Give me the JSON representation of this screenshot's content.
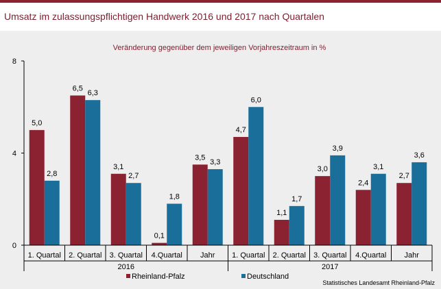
{
  "title": "Umsatz im zulassungspflichtigen Handwerk 2016 und 2017 nach Quartalen",
  "source": "Statistisches Landesamt Rheinland-Pfalz",
  "colors": {
    "accent": "#8b2232",
    "series_rp": "#8b2232",
    "series_de": "#1a6e9a",
    "background": "#eeeeee"
  },
  "chart_data": {
    "type": "bar",
    "title": "Veränderung gegenüber dem jeweiligen Vorjahreszeitraum in %",
    "ylim": [
      0,
      8
    ],
    "yticks": [
      "0",
      "4",
      "8"
    ],
    "categories": [
      "1. Quartal",
      "2. Quartal",
      "3. Quartal",
      "4.Quartal",
      "Jahr",
      "1. Quartal",
      "2. Quartal",
      "3. Quartal",
      "4.Quartal",
      "Jahr"
    ],
    "groups": [
      {
        "label": "2016",
        "start": 0,
        "end": 4
      },
      {
        "label": "2017",
        "start": 5,
        "end": 9
      }
    ],
    "series": [
      {
        "name": "Rheinland-Pfalz",
        "color": "#8b2232",
        "values": [
          5.0,
          6.5,
          3.1,
          0.1,
          3.5,
          4.7,
          1.1,
          3.0,
          2.4,
          2.7
        ],
        "labels": [
          "5,0",
          "6,5",
          "3,1",
          "0,1",
          "3,5",
          "4,7",
          "1,1",
          "3,0",
          "2,4",
          "2,7"
        ]
      },
      {
        "name": "Deutschland",
        "color": "#1a6e9a",
        "values": [
          2.8,
          6.3,
          2.7,
          1.8,
          3.3,
          6.0,
          1.7,
          3.9,
          3.1,
          3.6
        ],
        "labels": [
          "2,8",
          "6,3",
          "2,7",
          "1,8",
          "3,3",
          "6,0",
          "1,7",
          "3,9",
          "3,1",
          "3,6"
        ]
      }
    ],
    "legend": "bottom-center",
    "grid": false
  }
}
